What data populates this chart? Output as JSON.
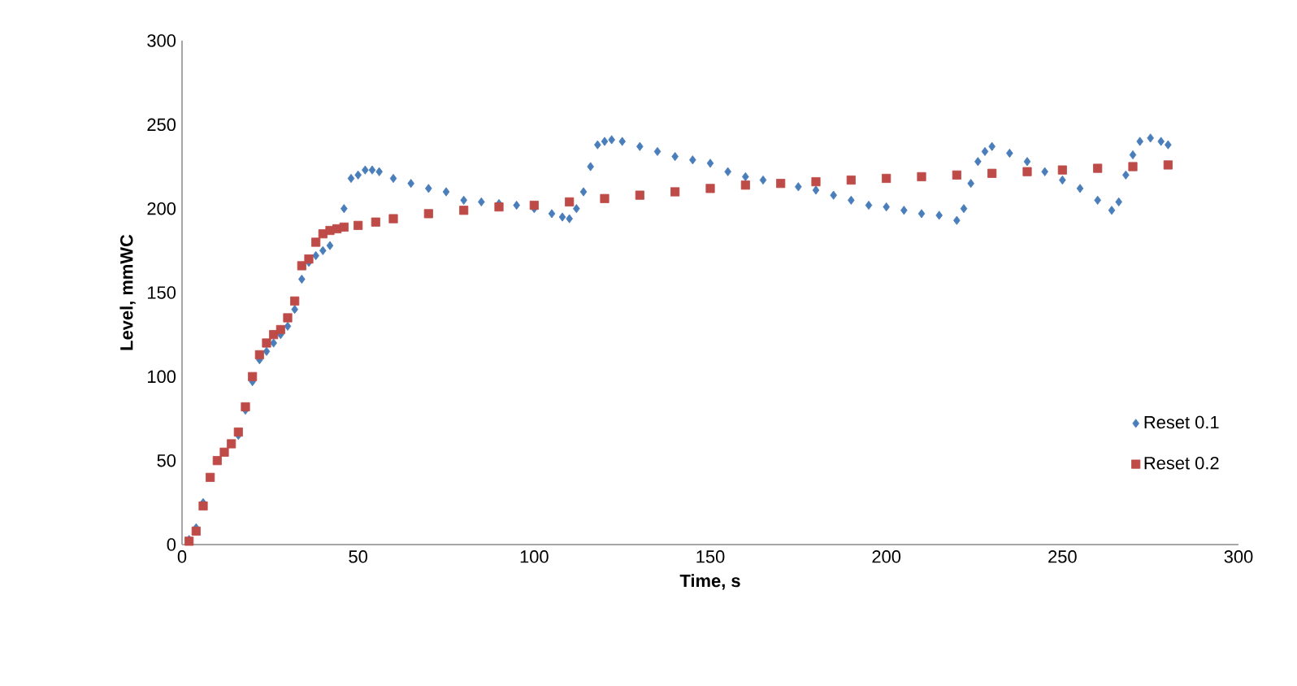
{
  "chart_data": {
    "type": "scatter",
    "xlabel": "Time, s",
    "ylabel": "Level, mmWC",
    "xlim": [
      0,
      300
    ],
    "xticks": [
      0,
      50,
      100,
      150,
      200,
      250,
      300
    ],
    "ylim": [
      0,
      300
    ],
    "yticks": [
      0,
      50,
      100,
      150,
      200,
      250,
      300
    ],
    "grid": false,
    "legend": "right",
    "series": [
      {
        "name": "Reset 0.1",
        "color": "#4a7ebb",
        "marker": "diamond",
        "x": [
          2,
          4,
          6,
          8,
          10,
          12,
          14,
          16,
          18,
          20,
          22,
          24,
          26,
          28,
          30,
          32,
          34,
          36,
          38,
          40,
          42,
          46,
          48,
          50,
          52,
          54,
          56,
          60,
          65,
          70,
          75,
          80,
          85,
          90,
          95,
          100,
          105,
          108,
          110,
          112,
          114,
          116,
          118,
          120,
          122,
          125,
          130,
          135,
          140,
          145,
          150,
          155,
          160,
          165,
          170,
          175,
          180,
          185,
          190,
          195,
          200,
          205,
          210,
          215,
          220,
          222,
          224,
          226,
          228,
          230,
          235,
          240,
          245,
          250,
          255,
          260,
          264,
          266,
          268,
          270,
          272,
          275,
          278,
          280
        ],
        "values": [
          3,
          10,
          25,
          null,
          null,
          null,
          null,
          65,
          80,
          97,
          110,
          115,
          120,
          125,
          130,
          140,
          158,
          168,
          172,
          175,
          178,
          200,
          218,
          220,
          223,
          223,
          222,
          218,
          215,
          212,
          210,
          205,
          204,
          203,
          202,
          200,
          197,
          195,
          194,
          200,
          210,
          225,
          238,
          240,
          241,
          240,
          237,
          234,
          231,
          229,
          227,
          222,
          219,
          217,
          null,
          213,
          211,
          208,
          205,
          202,
          201,
          199,
          197,
          196,
          193,
          200,
          215,
          228,
          234,
          237,
          233,
          228,
          222,
          217,
          212,
          205,
          199,
          204,
          220,
          232,
          240,
          242,
          240,
          238
        ]
      },
      {
        "name": "Reset 0.2",
        "color": "#be4b48",
        "marker": "square",
        "x": [
          2,
          4,
          6,
          8,
          10,
          12,
          14,
          16,
          18,
          20,
          22,
          24,
          26,
          28,
          30,
          32,
          34,
          36,
          38,
          40,
          42,
          44,
          46,
          50,
          55,
          60,
          70,
          80,
          90,
          100,
          110,
          120,
          130,
          140,
          150,
          160,
          170,
          180,
          190,
          200,
          210,
          220,
          230,
          240,
          250,
          260,
          270,
          280
        ],
        "values": [
          2,
          8,
          23,
          40,
          50,
          55,
          60,
          67,
          82,
          100,
          113,
          120,
          125,
          128,
          135,
          145,
          166,
          170,
          180,
          185,
          187,
          188,
          189,
          190,
          192,
          194,
          197,
          199,
          201,
          202,
          204,
          206,
          208,
          210,
          212,
          214,
          215,
          216,
          217,
          218,
          219,
          220,
          221,
          222,
          223,
          224,
          225,
          226
        ]
      }
    ]
  }
}
